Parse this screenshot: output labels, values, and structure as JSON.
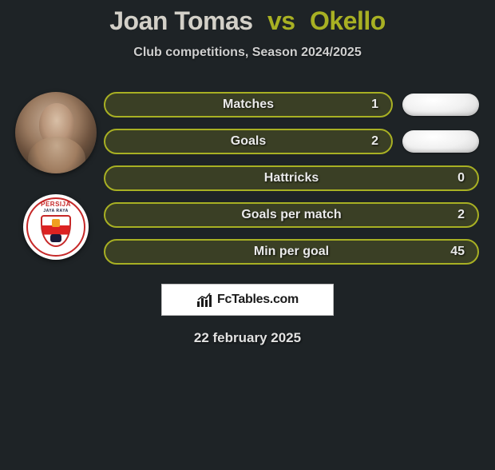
{
  "title": {
    "player1": "Joan Tomas",
    "vs": "vs",
    "player2": "Okello"
  },
  "subtitle": "Club competitions, Season 2024/2025",
  "club_badge": {
    "top": "PERSIJA",
    "sub": "JAYA RAYA"
  },
  "colors": {
    "bar_border": "#a8b023",
    "bar_fill": "#a8b02333",
    "oval_bg": "#e8e8e8"
  },
  "stats": [
    {
      "label": "Matches",
      "value": "1",
      "show_oval": true
    },
    {
      "label": "Goals",
      "value": "2",
      "show_oval": true
    },
    {
      "label": "Hattricks",
      "value": "0",
      "show_oval": false
    },
    {
      "label": "Goals per match",
      "value": "2",
      "show_oval": false
    },
    {
      "label": "Min per goal",
      "value": "45",
      "show_oval": false
    }
  ],
  "brand": "FcTables.com",
  "date": "22 february 2025"
}
